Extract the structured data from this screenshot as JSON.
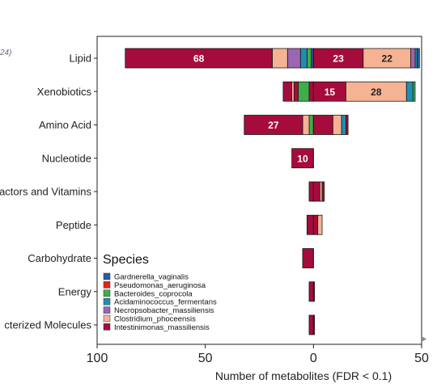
{
  "corner_note": "24)",
  "chart_data": {
    "type": "bar",
    "orientation": "horizontal",
    "stacked": true,
    "diverging": true,
    "xlabel": "Number of metabolites (FDR < 0.1)",
    "ylabel": "",
    "xlim": [
      100,
      50
    ],
    "xticks": [
      {
        "value": -100,
        "label": "100"
      },
      {
        "value": -50,
        "label": "50"
      },
      {
        "value": 0,
        "label": "0"
      },
      {
        "value": 50,
        "label": "50"
      }
    ],
    "categories": [
      "Lipid",
      "Xenobiotics",
      "Amino Acid",
      "Nucleotide",
      "actors and Vitamins",
      "Peptide",
      "Carbohydrate",
      "Energy",
      "cterized Molecules"
    ],
    "species_colors": {
      "Gardnerella_vaginalis": "#2a5aa0",
      "Pseudomonas_aeruginosa": "#e32222",
      "Bacteroides_coprocola": "#3fae49",
      "Acidaminococcus_fermentans": "#1e8fb0",
      "Necropsobacter_massiliensis": "#9a67b0",
      "Clostridium_phoceensis": "#f5b393",
      "Intestinimonas_massiliensis": "#a50c3c"
    },
    "legend": {
      "title": "Species",
      "position": "bottom-left",
      "entries": [
        "Gardnerella_vaginalis",
        "Pseudomonas_aeruginosa",
        "Bacteroides_coprocola",
        "Acidaminococcus_fermentans",
        "Necropsobacter_massiliensis",
        "Clostridium_phoceensis",
        "Intestinimonas_massiliensis"
      ]
    },
    "bars": [
      {
        "category": "Lipid",
        "segments": [
          {
            "species": "Gardnerella_vaginalis",
            "value": -1
          },
          {
            "species": "Bacteroides_coprocola",
            "value": -2
          },
          {
            "species": "Acidaminococcus_fermentans",
            "value": -3
          },
          {
            "species": "Necropsobacter_massiliensis",
            "value": -6
          },
          {
            "species": "Clostridium_phoceensis",
            "value": -7
          },
          {
            "species": "Intestinimonas_massiliensis",
            "value": -68,
            "label": "68"
          },
          {
            "species": "Intestinimonas_massiliensis",
            "value": 23,
            "label": "23"
          },
          {
            "species": "Clostridium_phoceensis",
            "value": 22,
            "label": "22"
          },
          {
            "species": "Necropsobacter_massiliensis",
            "value": 2
          },
          {
            "species": "Acidaminococcus_fermentans",
            "value": 1
          },
          {
            "species": "Gardnerella_vaginalis",
            "value": 1
          }
        ]
      },
      {
        "category": "Xenobiotics",
        "segments": [
          {
            "species": "Intestinimonas_massiliensis",
            "value": -2
          },
          {
            "species": "Bacteroides_coprocola",
            "value": -5
          },
          {
            "species": "Intestinimonas_massiliensis",
            "value": -2
          },
          {
            "species": "Clostridium_phoceensis",
            "value": -1
          },
          {
            "species": "Intestinimonas_massiliensis",
            "value": -4
          },
          {
            "species": "Intestinimonas_massiliensis",
            "value": 15,
            "label": "15"
          },
          {
            "species": "Clostridium_phoceensis",
            "value": 28,
            "label": "28"
          },
          {
            "species": "Acidaminococcus_fermentans",
            "value": 3
          },
          {
            "species": "Bacteroides_coprocola",
            "value": 1
          }
        ]
      },
      {
        "category": "Amino Acid",
        "segments": [
          {
            "species": "Bacteroides_coprocola",
            "value": -2
          },
          {
            "species": "Clostridium_phoceensis",
            "value": -3
          },
          {
            "species": "Intestinimonas_massiliensis",
            "value": -27,
            "label": "27"
          },
          {
            "species": "Intestinimonas_massiliensis",
            "value": 9
          },
          {
            "species": "Clostridium_phoceensis",
            "value": 4
          },
          {
            "species": "Acidaminococcus_fermentans",
            "value": 2
          },
          {
            "species": "Intestinimonas_massiliensis",
            "value": 1
          }
        ]
      },
      {
        "category": "Nucleotide",
        "segments": [
          {
            "species": "Intestinimonas_massiliensis",
            "value": -10,
            "label": "10"
          }
        ]
      },
      {
        "category": "actors and Vitamins",
        "segments": [
          {
            "species": "Intestinimonas_massiliensis",
            "value": -2
          },
          {
            "species": "Intestinimonas_massiliensis",
            "value": 3
          },
          {
            "species": "Clostridium_phoceensis",
            "value": 1
          },
          {
            "species": "Intestinimonas_massiliensis",
            "value": 1
          }
        ]
      },
      {
        "category": "Peptide",
        "segments": [
          {
            "species": "Intestinimonas_massiliensis",
            "value": -3
          },
          {
            "species": "Intestinimonas_massiliensis",
            "value": 2
          },
          {
            "species": "Clostridium_phoceensis",
            "value": 2
          }
        ]
      },
      {
        "category": "Carbohydrate",
        "segments": [
          {
            "species": "Intestinimonas_massiliensis",
            "value": -5
          }
        ]
      },
      {
        "category": "Energy",
        "segments": [
          {
            "species": "Intestinimonas_massiliensis",
            "value": -2
          },
          {
            "species": "Intestinimonas_massiliensis",
            "value": 0.5
          }
        ]
      },
      {
        "category": "cterized Molecules",
        "segments": [
          {
            "species": "Intestinimonas_massiliensis",
            "value": -2
          },
          {
            "species": "Intestinimonas_massiliensis",
            "value": 0.5
          }
        ]
      }
    ]
  }
}
